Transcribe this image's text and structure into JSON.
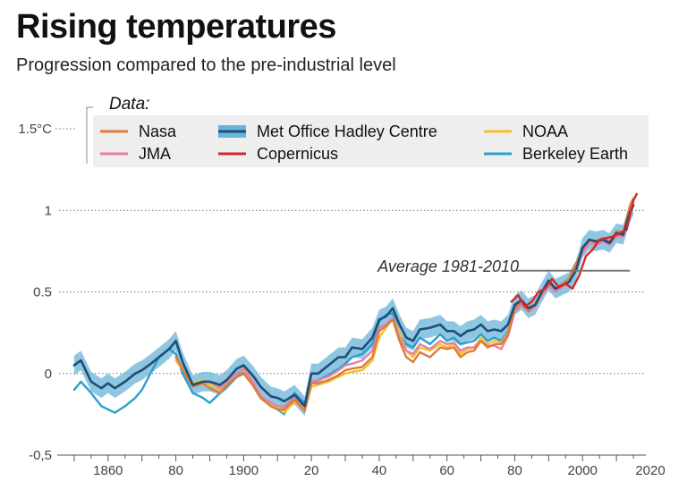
{
  "header": {
    "title": "Rising temperatures",
    "subtitle": "Progression compared to the pre-industrial level"
  },
  "chart_data": {
    "type": "line",
    "title": "Rising temperatures",
    "subtitle": "Progression compared to the pre-industrial level",
    "xlabel": "",
    "ylabel": "",
    "xlim": [
      1845,
      2020
    ],
    "ylim": [
      -0.5,
      1.5
    ],
    "x_ticks": [
      {
        "value": 1860,
        "label": "1860"
      },
      {
        "value": 1880,
        "label": "80"
      },
      {
        "value": 1900,
        "label": "1900"
      },
      {
        "value": 1920,
        "label": "20"
      },
      {
        "value": 1940,
        "label": "40"
      },
      {
        "value": 1960,
        "label": "60"
      },
      {
        "value": 1980,
        "label": "80"
      },
      {
        "value": 2000,
        "label": "2000"
      },
      {
        "value": 2020,
        "label": "2020"
      }
    ],
    "y_ticks": [
      {
        "value": 1.5,
        "label": "1.5°C"
      },
      {
        "value": 1.0,
        "label": "1"
      },
      {
        "value": 0.5,
        "label": "0.5"
      },
      {
        "value": 0.0,
        "label": "0"
      },
      {
        "value": -0.5,
        "label": "-0,5"
      }
    ],
    "legend_title": "Data:",
    "annotation": {
      "label": "Average 1981-2010",
      "value": 0.63,
      "x_start": 1980,
      "x_end": 2014
    },
    "series": [
      {
        "name": "Met Office Hadley Centre",
        "color": "#1f4e79",
        "band_color": "#6ab4d8",
        "band_width": 0.06,
        "x": [
          1850,
          1852,
          1855,
          1858,
          1860,
          1862,
          1865,
          1868,
          1870,
          1872,
          1875,
          1878,
          1880,
          1882,
          1885,
          1888,
          1890,
          1893,
          1895,
          1898,
          1900,
          1903,
          1905,
          1908,
          1910,
          1912,
          1915,
          1918,
          1920,
          1922,
          1925,
          1928,
          1930,
          1932,
          1935,
          1938,
          1940,
          1942,
          1944,
          1946,
          1948,
          1950,
          1952,
          1955,
          1958,
          1960,
          1962,
          1964,
          1966,
          1968,
          1970,
          1972,
          1974,
          1976,
          1978,
          1980,
          1982,
          1984,
          1986,
          1988,
          1990,
          1992,
          1994,
          1996,
          1998,
          2000,
          2002,
          2004,
          2006,
          2008,
          2010,
          2012,
          2014,
          2015
        ],
        "values": [
          0.05,
          0.08,
          -0.05,
          -0.09,
          -0.06,
          -0.09,
          -0.05,
          0.0,
          0.02,
          0.05,
          0.1,
          0.15,
          0.2,
          0.07,
          -0.07,
          -0.05,
          -0.05,
          -0.07,
          -0.04,
          0.03,
          0.05,
          -0.02,
          -0.08,
          -0.14,
          -0.15,
          -0.17,
          -0.13,
          -0.2,
          0.0,
          0.0,
          0.05,
          0.1,
          0.1,
          0.16,
          0.15,
          0.22,
          0.33,
          0.35,
          0.4,
          0.3,
          0.22,
          0.2,
          0.27,
          0.28,
          0.3,
          0.26,
          0.26,
          0.23,
          0.26,
          0.27,
          0.3,
          0.26,
          0.27,
          0.26,
          0.3,
          0.42,
          0.45,
          0.4,
          0.42,
          0.5,
          0.57,
          0.52,
          0.54,
          0.56,
          0.63,
          0.77,
          0.82,
          0.81,
          0.82,
          0.8,
          0.86,
          0.85,
          0.99,
          1.03
        ]
      },
      {
        "name": "Nasa",
        "color": "#e07b39",
        "x": [
          1880,
          1885,
          1888,
          1890,
          1893,
          1895,
          1898,
          1900,
          1903,
          1905,
          1908,
          1910,
          1912,
          1915,
          1918,
          1920,
          1922,
          1925,
          1928,
          1930,
          1932,
          1935,
          1938,
          1940,
          1942,
          1944,
          1946,
          1948,
          1950,
          1952,
          1955,
          1958,
          1960,
          1962,
          1964,
          1966,
          1968,
          1970,
          1972,
          1974,
          1976,
          1978,
          1980,
          1982,
          1984,
          1986,
          1988,
          1990,
          1992,
          1994,
          1996,
          1998,
          2000,
          2002,
          2004,
          2006,
          2008,
          2010,
          2012,
          2014,
          2015
        ],
        "values": [
          0.1,
          -0.08,
          -0.06,
          -0.09,
          -0.12,
          -0.07,
          -0.02,
          0.0,
          -0.08,
          -0.15,
          -0.2,
          -0.22,
          -0.22,
          -0.16,
          -0.23,
          -0.06,
          -0.06,
          -0.04,
          -0.01,
          0.02,
          0.03,
          0.04,
          0.1,
          0.26,
          0.29,
          0.33,
          0.2,
          0.1,
          0.07,
          0.13,
          0.1,
          0.16,
          0.15,
          0.16,
          0.1,
          0.13,
          0.14,
          0.2,
          0.16,
          0.18,
          0.18,
          0.24,
          0.4,
          0.44,
          0.38,
          0.42,
          0.5,
          0.56,
          0.52,
          0.55,
          0.58,
          0.67,
          0.76,
          0.82,
          0.8,
          0.83,
          0.81,
          0.87,
          0.87,
          1.03,
          1.07
        ]
      },
      {
        "name": "JMA",
        "color": "#e67fa6",
        "x": [
          1891,
          1893,
          1895,
          1898,
          1900,
          1903,
          1905,
          1908,
          1910,
          1912,
          1915,
          1918,
          1920,
          1922,
          1925,
          1928,
          1930,
          1932,
          1935,
          1938,
          1940,
          1942,
          1944,
          1946,
          1948,
          1950,
          1952,
          1955,
          1958,
          1960,
          1962,
          1964,
          1966,
          1968,
          1970,
          1972,
          1974,
          1976,
          1978,
          1980,
          1982,
          1984,
          1986,
          1988,
          1990,
          1992,
          1994,
          1996,
          1998,
          2000,
          2002,
          2004,
          2006,
          2008,
          2010,
          2012,
          2014
        ],
        "values": [
          -0.06,
          -0.09,
          -0.05,
          0.0,
          0.03,
          -0.06,
          -0.14,
          -0.18,
          -0.2,
          -0.2,
          -0.15,
          -0.2,
          -0.05,
          -0.04,
          -0.02,
          0.02,
          0.05,
          0.06,
          0.08,
          0.14,
          0.28,
          0.3,
          0.34,
          0.22,
          0.14,
          0.12,
          0.18,
          0.15,
          0.2,
          0.18,
          0.19,
          0.14,
          0.16,
          0.16,
          0.2,
          0.17,
          0.17,
          0.15,
          0.23,
          0.38,
          0.42,
          0.38,
          0.41,
          0.48,
          0.54,
          0.5,
          0.53,
          0.56,
          0.64,
          0.74,
          0.8,
          0.79,
          0.81,
          0.79,
          0.84,
          0.84,
          1.0
        ]
      },
      {
        "name": "NOAA",
        "color": "#f2c12e",
        "x": [
          1880,
          1885,
          1888,
          1890,
          1893,
          1895,
          1898,
          1900,
          1903,
          1905,
          1908,
          1910,
          1912,
          1915,
          1918,
          1920,
          1922,
          1925,
          1928,
          1930,
          1932,
          1935,
          1938,
          1940,
          1942,
          1944,
          1946,
          1948,
          1950,
          1952,
          1955,
          1958,
          1960,
          1962,
          1964,
          1966,
          1968,
          1970,
          1972,
          1974,
          1976,
          1978,
          1980,
          1982,
          1984,
          1986,
          1988,
          1990,
          1992,
          1994,
          1996,
          1998,
          2000,
          2002,
          2004,
          2006,
          2008,
          2010,
          2012,
          2014,
          2015
        ],
        "values": [
          0.08,
          -0.06,
          -0.04,
          -0.07,
          -0.1,
          -0.05,
          0.0,
          0.02,
          -0.06,
          -0.14,
          -0.19,
          -0.21,
          -0.24,
          -0.17,
          -0.23,
          -0.08,
          -0.07,
          -0.05,
          -0.02,
          0.0,
          0.01,
          0.02,
          0.08,
          0.22,
          0.28,
          0.34,
          0.25,
          0.14,
          0.1,
          0.16,
          0.14,
          0.18,
          0.16,
          0.18,
          0.12,
          0.15,
          0.16,
          0.22,
          0.18,
          0.2,
          0.19,
          0.25,
          0.41,
          0.45,
          0.39,
          0.43,
          0.5,
          0.56,
          0.52,
          0.55,
          0.58,
          0.66,
          0.75,
          0.81,
          0.8,
          0.82,
          0.8,
          0.86,
          0.86,
          1.01,
          1.05
        ]
      },
      {
        "name": "Copernicus",
        "color": "#d62728",
        "x": [
          1979,
          1981,
          1983,
          1985,
          1987,
          1989,
          1991,
          1993,
          1995,
          1997,
          1999,
          2001,
          2003,
          2005,
          2007,
          2009,
          2011,
          2013,
          2015,
          2016
        ],
        "values": [
          0.44,
          0.48,
          0.41,
          0.44,
          0.5,
          0.52,
          0.58,
          0.53,
          0.55,
          0.52,
          0.6,
          0.72,
          0.76,
          0.82,
          0.83,
          0.84,
          0.86,
          0.88,
          1.06,
          1.1
        ]
      },
      {
        "name": "Berkeley Earth",
        "color": "#2a9fd0",
        "x": [
          1850,
          1852,
          1855,
          1858,
          1860,
          1862,
          1865,
          1868,
          1870,
          1872,
          1875,
          1878,
          1880,
          1882,
          1885,
          1888,
          1890,
          1893,
          1895,
          1898,
          1900,
          1903,
          1905,
          1908,
          1910,
          1912,
          1915,
          1918,
          1920,
          1922,
          1925,
          1928,
          1930,
          1932,
          1935,
          1938,
          1940,
          1942,
          1944,
          1946,
          1948,
          1950,
          1952,
          1955,
          1958,
          1960,
          1962,
          1964,
          1966,
          1968,
          1970,
          1972,
          1974,
          1976,
          1978,
          1980,
          1982,
          1984,
          1986,
          1988,
          1990,
          1992,
          1994,
          1996,
          1998,
          2000,
          2002,
          2004,
          2006,
          2008,
          2010,
          2012,
          2014
        ],
        "values": [
          -0.1,
          -0.05,
          -0.12,
          -0.2,
          -0.22,
          -0.24,
          -0.2,
          -0.15,
          -0.1,
          -0.02,
          0.1,
          0.15,
          0.12,
          0.0,
          -0.12,
          -0.15,
          -0.18,
          -0.12,
          -0.08,
          -0.02,
          0.02,
          -0.08,
          -0.15,
          -0.2,
          -0.22,
          -0.25,
          -0.12,
          -0.18,
          -0.06,
          -0.04,
          -0.01,
          0.03,
          0.06,
          0.1,
          0.12,
          0.18,
          0.32,
          0.36,
          0.37,
          0.24,
          0.18,
          0.16,
          0.22,
          0.18,
          0.24,
          0.2,
          0.22,
          0.18,
          0.19,
          0.2,
          0.24,
          0.2,
          0.22,
          0.2,
          0.26,
          0.4,
          0.44,
          0.4,
          0.43,
          0.5,
          0.55,
          0.52,
          0.55,
          0.58,
          0.64,
          0.75,
          0.81,
          0.8,
          0.83,
          0.81,
          0.87,
          0.86,
          1.02
        ]
      }
    ]
  }
}
